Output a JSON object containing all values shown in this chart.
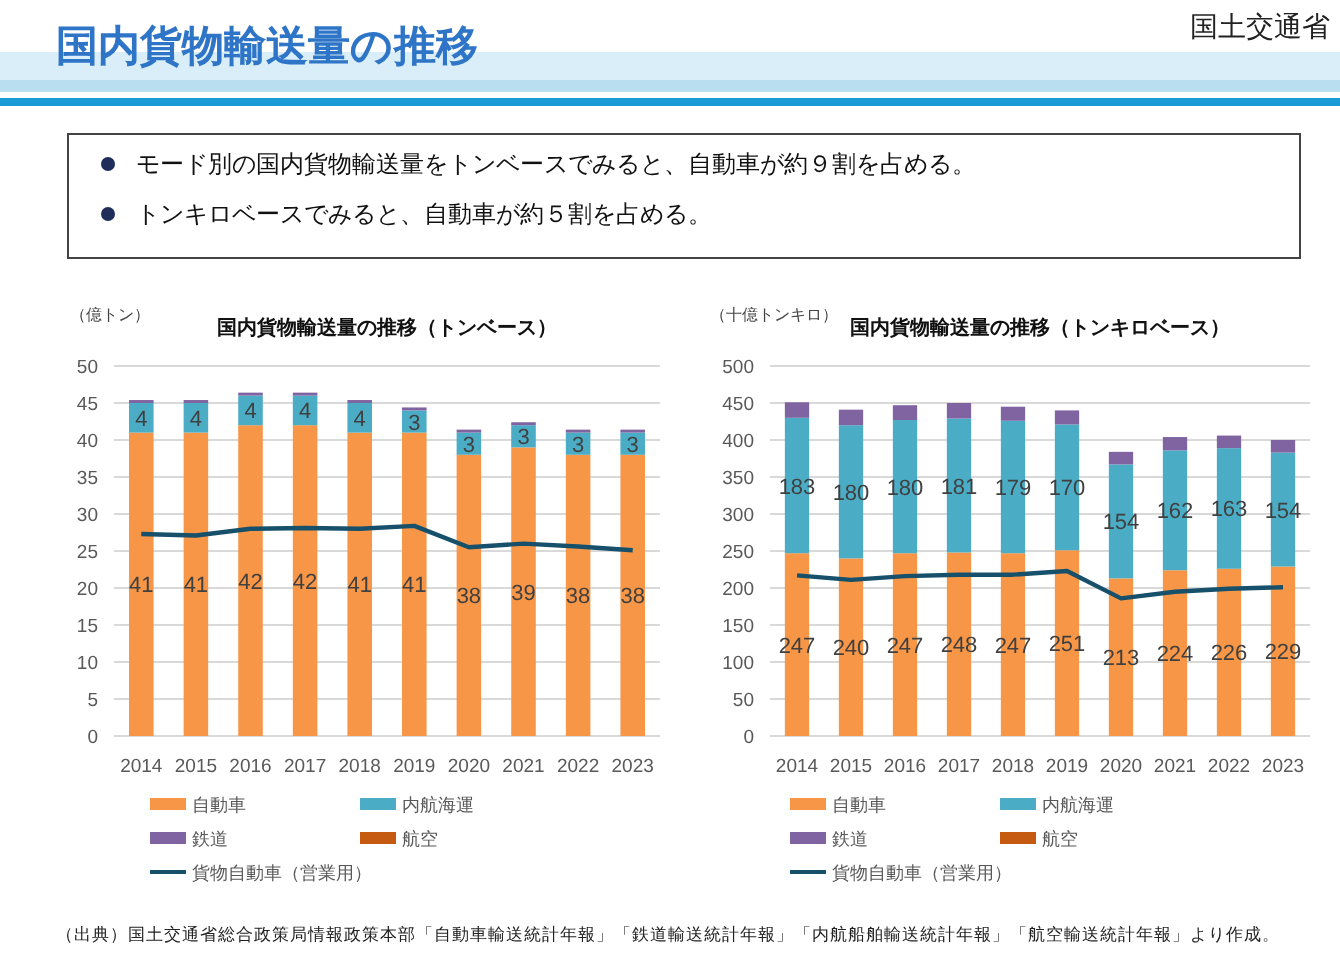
{
  "chart_data": [
    {
      "type": "other",
      "title": "国内貨物輸送量の推移",
      "annotations": [
        "国土交通省",
        "モード別の国内貨物輸送量をトンベースでみると、自動車が約９割を占める。",
        "トンキロベースでみると、自動車が約５割を占める。",
        "（出典）国土交通省総合政策局情報政策本部「自動車輸送統計年報」「鉄道輸送統計年報」「内航船舶輸送統計年報」「航空輸送統計年報」より作成。"
      ]
    },
    {
      "type": "bar",
      "stacked": true,
      "title": "国内貨物輸送量の推移（トンベース）",
      "ylabel": "（億トン）",
      "categories": [
        "2014",
        "2015",
        "2016",
        "2017",
        "2018",
        "2019",
        "2020",
        "2021",
        "2022",
        "2023"
      ],
      "ylim": [
        0,
        50
      ],
      "yticks": [
        0,
        5,
        10,
        15,
        20,
        25,
        30,
        35,
        40,
        45,
        50
      ],
      "grid": "y",
      "legend": "bottom",
      "series": [
        {
          "name": "自動車",
          "color": "#f79646",
          "values": [
            41,
            41,
            42,
            42,
            41,
            41,
            38,
            39,
            38,
            38
          ],
          "value_labels": [
            "41",
            "41",
            "42",
            "42",
            "41",
            "41",
            "38",
            "39",
            "38",
            "38"
          ]
        },
        {
          "name": "内航海運",
          "color": "#4bacc6",
          "values": [
            4,
            4,
            4,
            4,
            4,
            3,
            3,
            3,
            3,
            3
          ],
          "value_labels": [
            "4",
            "4",
            "4",
            "4",
            "4",
            "3",
            "3",
            "3",
            "3",
            "3"
          ]
        },
        {
          "name": "鉄道",
          "color": "#8064a2",
          "values": [
            0.4,
            0.4,
            0.4,
            0.4,
            0.4,
            0.4,
            0.4,
            0.4,
            0.4,
            0.4
          ]
        },
        {
          "name": "航空",
          "color": "#c55a11",
          "values": [
            null,
            null,
            null,
            null,
            null,
            null,
            null,
            null,
            null,
            null
          ]
        },
        {
          "name": "貨物自動車（営業用）",
          "color": "#17506b",
          "type": "line",
          "values": [
            27.3,
            27.1,
            28.0,
            28.1,
            28.0,
            28.4,
            25.5,
            26.0,
            25.6,
            25.1
          ]
        }
      ]
    },
    {
      "type": "bar",
      "stacked": true,
      "title": "国内貨物輸送量の推移（トンキロベース）",
      "ylabel": "（十億トンキロ）",
      "categories": [
        "2014",
        "2015",
        "2016",
        "2017",
        "2018",
        "2019",
        "2020",
        "2021",
        "2022",
        "2023"
      ],
      "ylim": [
        0,
        500
      ],
      "yticks": [
        0,
        50,
        100,
        150,
        200,
        250,
        300,
        350,
        400,
        450,
        500
      ],
      "grid": "y",
      "legend": "bottom",
      "series": [
        {
          "name": "自動車",
          "color": "#f79646",
          "values": [
            247,
            240,
            247,
            248,
            247,
            251,
            213,
            224,
            226,
            229
          ],
          "value_labels": [
            "247",
            "240",
            "247",
            "248",
            "247",
            "251",
            "213",
            "224",
            "226",
            "229"
          ]
        },
        {
          "name": "内航海運",
          "color": "#4bacc6",
          "values": [
            183,
            180,
            180,
            181,
            179,
            170,
            154,
            162,
            163,
            154
          ],
          "value_labels": [
            "183",
            "180",
            "180",
            "181",
            "179",
            "170",
            "154",
            "162",
            "163",
            "154"
          ]
        },
        {
          "name": "鉄道",
          "color": "#8064a2",
          "values": [
            21,
            21,
            20,
            21,
            19,
            19,
            17,
            18,
            17,
            17
          ]
        },
        {
          "name": "航空",
          "color": "#c55a11",
          "values": [
            null,
            null,
            null,
            null,
            null,
            null,
            null,
            null,
            null,
            null
          ]
        },
        {
          "name": "貨物自動車（営業用）",
          "color": "#17506b",
          "type": "line",
          "values": [
            217,
            211,
            216,
            218,
            218,
            223,
            186,
            195,
            199,
            201
          ]
        }
      ]
    }
  ]
}
